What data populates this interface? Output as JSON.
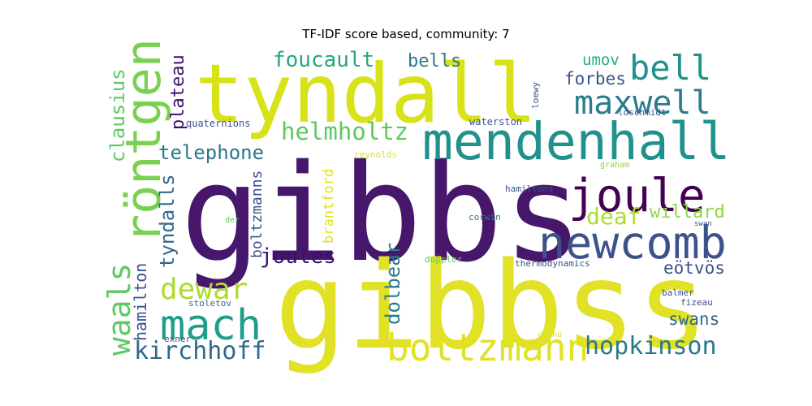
{
  "title": "TF-IDF score based, community: 7",
  "palette": {
    "dark_purple": "#46176b",
    "navy": "#3f4a8a",
    "blue": "#365c8d",
    "teal": "#2a8b8a",
    "green": "#27a57b",
    "lime": "#8fd744",
    "yellow": "#e1e125",
    "gray_blue": "#4a5d8b"
  },
  "words": [
    {
      "text": "gibbs",
      "color": "#46176b"
    },
    {
      "text": "gibbss",
      "color": "#e1e125"
    },
    {
      "text": "tyndall",
      "color": "#d8e219"
    },
    {
      "text": "mendenhall",
      "color": "#21918c"
    },
    {
      "text": "röntgen",
      "color": "#7ad151"
    },
    {
      "text": "newcomb",
      "color": "#3b528b"
    },
    {
      "text": "joule",
      "color": "#440154"
    },
    {
      "text": "mach",
      "color": "#1f9e89"
    },
    {
      "text": "boltzmann",
      "color": "#e1e125"
    },
    {
      "text": "maxwell",
      "color": "#287c8e"
    },
    {
      "text": "bell",
      "color": "#21918c"
    },
    {
      "text": "waals",
      "color": "#5ec962"
    },
    {
      "text": "kirchhoff",
      "color": "#31688e"
    },
    {
      "text": "hopkinson",
      "color": "#2a788e"
    },
    {
      "text": "dewar",
      "color": "#addc30"
    },
    {
      "text": "helmholtz",
      "color": "#5ec962"
    },
    {
      "text": "foucault",
      "color": "#22a884"
    },
    {
      "text": "telephone",
      "color": "#2a788e"
    },
    {
      "text": "clausius",
      "color": "#5ec962"
    },
    {
      "text": "joules",
      "color": "#3b0f70"
    },
    {
      "text": "deaf",
      "color": "#addc30"
    },
    {
      "text": "tyndalls",
      "color": "#31688e"
    },
    {
      "text": "plateau",
      "color": "#3b0f70"
    },
    {
      "text": "hamilton",
      "color": "#3b528b"
    },
    {
      "text": "dolbear",
      "color": "#287c8e"
    },
    {
      "text": "willard",
      "color": "#8fd744"
    },
    {
      "text": "bells",
      "color": "#2a788e"
    },
    {
      "text": "forbes",
      "color": "#3b528b"
    },
    {
      "text": "umov",
      "color": "#27ad81"
    },
    {
      "text": "swans",
      "color": "#31688e"
    },
    {
      "text": "eötvös",
      "color": "#3b528b"
    },
    {
      "text": "boltzmanns",
      "color": "#3b528b"
    },
    {
      "text": "brantford",
      "color": "#e1e125"
    },
    {
      "text": "quaternions",
      "color": "#3b528b"
    },
    {
      "text": "waterston",
      "color": "#3b528b"
    },
    {
      "text": "loschmidt",
      "color": "#3b528b"
    },
    {
      "text": "loewy",
      "color": "#3b528b"
    },
    {
      "text": "reynolds",
      "color": "#e1e125"
    },
    {
      "text": "graham",
      "color": "#8fd744"
    },
    {
      "text": "hamiltons",
      "color": "#3b528b"
    },
    {
      "text": "der",
      "color": "#5ec962"
    },
    {
      "text": "corwin",
      "color": "#287c8e"
    },
    {
      "text": "swan",
      "color": "#3b528b"
    },
    {
      "text": "doppler",
      "color": "#5ec962"
    },
    {
      "text": "thermodynamics",
      "color": "#3b528b"
    },
    {
      "text": "balmer",
      "color": "#3b528b"
    },
    {
      "text": "fizeau",
      "color": "#3b528b"
    },
    {
      "text": "stoletov",
      "color": "#31688e"
    },
    {
      "text": "exner",
      "color": "#3b528b"
    },
    {
      "text": "cornu",
      "color": "#e1e125"
    }
  ]
}
